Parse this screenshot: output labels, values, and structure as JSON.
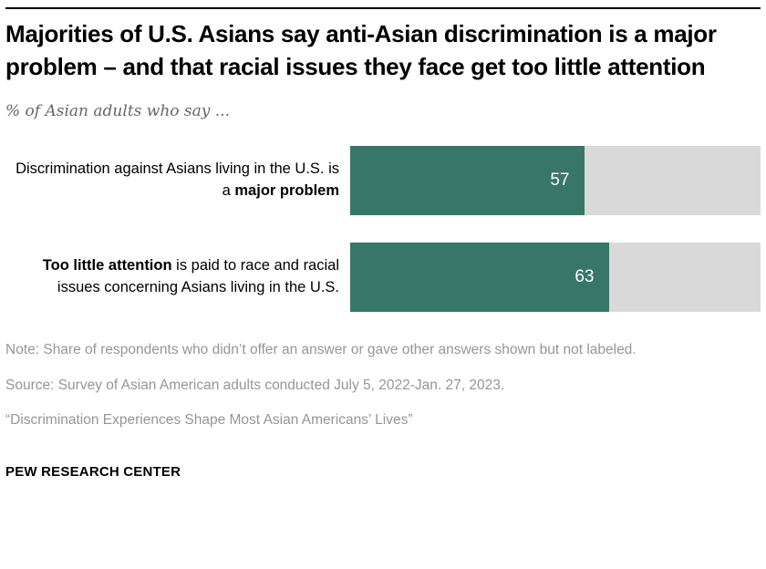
{
  "title": "Majorities of U.S. Asians say anti-Asian discrimination is a major problem – and that racial issues they face get too little attention",
  "subtitle": "% of Asian adults who say ...",
  "chart_data": {
    "type": "bar",
    "orientation": "horizontal",
    "categories": [
      "Discrimination against Asians living in the U.S. is a major problem",
      "Too little attention is paid to race and racial issues concerning Asians living in the U.S."
    ],
    "values": [
      57,
      63
    ],
    "value_labels": [
      "57",
      "63"
    ],
    "xlim": [
      0,
      100
    ],
    "bar_color": "#377668",
    "remainder_color": "#d9d9d9",
    "grid": false,
    "legend": false
  },
  "bars": [
    {
      "label_pre": "Discrimination against Asians living in the U.S. is a ",
      "label_bold": "major problem",
      "label_post": "",
      "value": "57"
    },
    {
      "label_pre": "",
      "label_bold": "Too little attention",
      "label_post": " is paid to race and racial issues concerning Asians living in the U.S.",
      "value": "63"
    }
  ],
  "notes": [
    "Note: Share of respondents who didn’t offer an answer or gave other answers shown but not labeled.",
    "Source: Survey of Asian American adults conducted July 5, 2022-Jan. 27, 2023.",
    "“Discrimination Experiences Shape Most Asian Americans’ Lives”"
  ],
  "footer": "PEW RESEARCH CENTER"
}
